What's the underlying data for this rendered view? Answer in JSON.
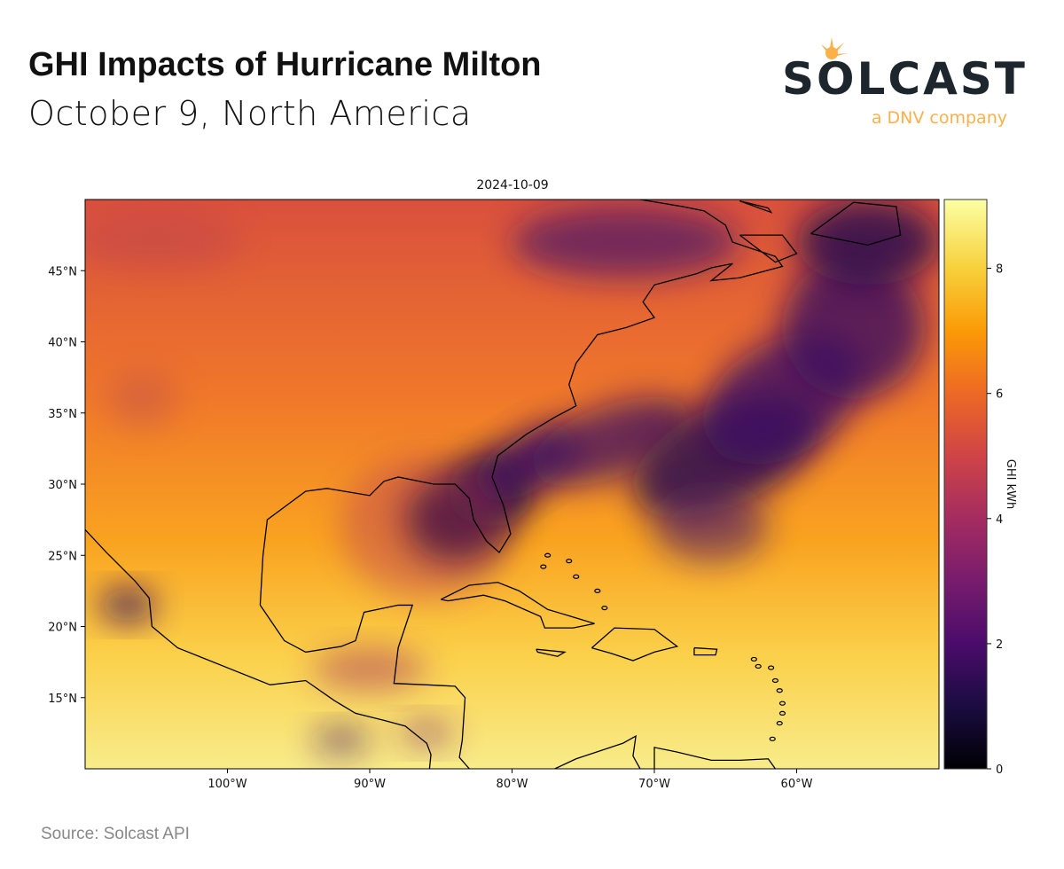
{
  "header": {
    "title": "GHI Impacts of Hurricane Milton",
    "subtitle": "October 9, North America"
  },
  "logo": {
    "brand": "SOLCAST",
    "tagline": "a DNV company",
    "brand_color": "#1e262d",
    "accent_color": "#fbb04a"
  },
  "map": {
    "type": "heatmap",
    "title": "2024-10-09",
    "projection": "plate carree",
    "lon_range": [
      -110,
      -50
    ],
    "lat_range": [
      10,
      50
    ],
    "x_ticks": [
      {
        "value": -100,
        "label": "100°W"
      },
      {
        "value": -90,
        "label": "90°W"
      },
      {
        "value": -80,
        "label": "80°W"
      },
      {
        "value": -70,
        "label": "70°W"
      },
      {
        "value": -60,
        "label": "60°W"
      }
    ],
    "y_ticks": [
      {
        "value": 15,
        "label": "15°N"
      },
      {
        "value": 20,
        "label": "20°N"
      },
      {
        "value": 25,
        "label": "25°N"
      },
      {
        "value": 30,
        "label": "30°N"
      },
      {
        "value": 35,
        "label": "35°N"
      },
      {
        "value": 40,
        "label": "40°N"
      },
      {
        "value": 45,
        "label": "45°N"
      }
    ],
    "colorbar": {
      "label": "GHI kWh",
      "colormap": "inferno",
      "range": [
        0,
        9.1
      ],
      "ticks": [
        {
          "value": 0,
          "label": "0"
        },
        {
          "value": 2,
          "label": "2"
        },
        {
          "value": 4,
          "label": "4"
        },
        {
          "value": 6,
          "label": "6"
        },
        {
          "value": 8,
          "label": "8"
        }
      ]
    }
  },
  "footer": {
    "source": "Source: Solcast API"
  }
}
